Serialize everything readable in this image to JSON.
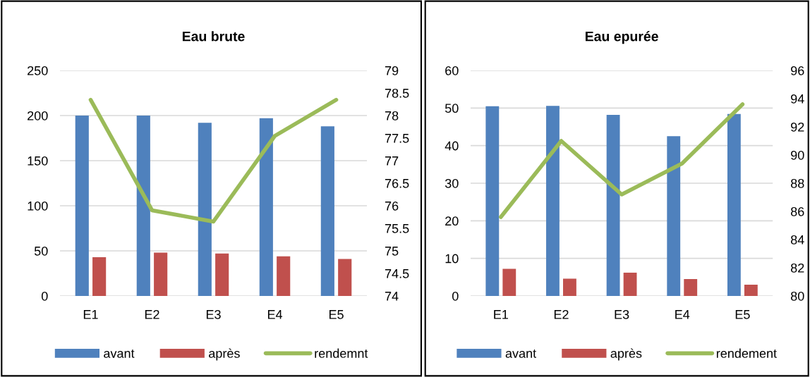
{
  "chart_data": [
    {
      "type": "bar",
      "title": "Eau brute",
      "categories": [
        "E1",
        "E2",
        "E3",
        "E4",
        "E5"
      ],
      "series": [
        {
          "name": "avant",
          "color": "#4f81bd",
          "values": [
            200,
            200,
            192,
            197,
            188
          ]
        },
        {
          "name": "après",
          "color": "#c0504d",
          "values": [
            43,
            48,
            47,
            44,
            41
          ]
        },
        {
          "name": "rendemnt",
          "color": "#9bbb59",
          "type": "line",
          "axis": "y2",
          "values": [
            78.35,
            75.9,
            75.65,
            77.55,
            78.35
          ]
        }
      ],
      "ylim": [
        0,
        250
      ],
      "yticks": [
        0,
        50,
        100,
        150,
        200,
        250
      ],
      "y2lim": [
        74,
        79
      ],
      "y2ticks": [
        74,
        74.5,
        75,
        75.5,
        76,
        76.5,
        77,
        77.5,
        78,
        78.5,
        79
      ],
      "grid": "y",
      "legend": "bottom"
    },
    {
      "type": "bar",
      "title": "Eau epurée",
      "categories": [
        "E1",
        "E2",
        "E3",
        "E4",
        "E5"
      ],
      "series": [
        {
          "name": "avant",
          "color": "#4f81bd",
          "values": [
            50.5,
            50.6,
            48.2,
            42.5,
            48.4
          ]
        },
        {
          "name": "après",
          "color": "#c0504d",
          "values": [
            7.2,
            4.6,
            6.2,
            4.5,
            3
          ]
        },
        {
          "name": "rendement",
          "color": "#9bbb59",
          "type": "line",
          "axis": "y2",
          "values": [
            85.6,
            91,
            87.2,
            89.4,
            93.6
          ]
        }
      ],
      "ylim": [
        0,
        60
      ],
      "yticks": [
        0,
        10,
        20,
        30,
        40,
        50,
        60
      ],
      "y2lim": [
        80,
        96
      ],
      "y2ticks": [
        80,
        82,
        84,
        86,
        88,
        90,
        92,
        94,
        96
      ],
      "grid": "y",
      "legend": "bottom"
    }
  ]
}
